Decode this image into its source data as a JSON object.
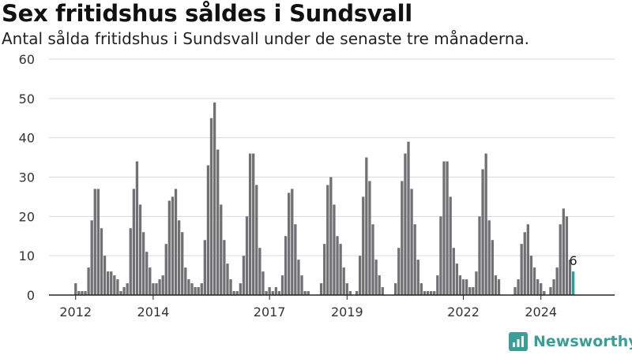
{
  "chart_data": {
    "type": "bar",
    "title": "Sex fritidshus såldes i Sundsvall",
    "subtitle": "Antal sålda fritidshus i Sundsvall under de senaste tre månaderna.",
    "xlabel": "",
    "ylabel": "",
    "ylim": [
      0,
      60
    ],
    "yticks": [
      0,
      10,
      20,
      30,
      40,
      50,
      60
    ],
    "xtick_labels": [
      "2012",
      "2014",
      "2017",
      "2019",
      "2022",
      "2024"
    ],
    "grid": true,
    "start_period": "2011-12",
    "values": [
      0,
      3,
      1,
      1,
      1,
      7,
      19,
      27,
      27,
      17,
      10,
      6,
      6,
      5,
      4,
      1,
      2,
      3,
      17,
      27,
      34,
      23,
      16,
      11,
      7,
      3,
      3,
      4,
      5,
      13,
      24,
      25,
      27,
      19,
      16,
      7,
      4,
      3,
      2,
      2,
      3,
      14,
      33,
      45,
      49,
      37,
      23,
      14,
      8,
      4,
      1,
      1,
      3,
      10,
      20,
      36,
      36,
      28,
      12,
      6,
      1,
      2,
      1,
      2,
      1,
      5,
      15,
      26,
      27,
      18,
      9,
      5,
      1,
      1,
      0,
      0,
      0,
      3,
      13,
      28,
      30,
      23,
      15,
      13,
      7,
      3,
      1,
      0,
      1,
      10,
      25,
      35,
      29,
      18,
      9,
      5,
      2,
      0,
      0,
      0,
      3,
      12,
      29,
      36,
      39,
      27,
      18,
      9,
      3,
      1,
      1,
      1,
      1,
      5,
      20,
      34,
      34,
      25,
      12,
      8,
      5,
      4,
      4,
      2,
      2,
      6,
      20,
      32,
      36,
      19,
      14,
      5,
      4,
      0,
      0,
      0,
      0,
      2,
      4,
      13,
      16,
      18,
      10,
      7,
      4,
      3,
      1,
      0,
      2,
      4,
      7,
      18,
      22,
      20,
      9,
      6
    ],
    "highlight_label": "6",
    "colors": {
      "bar": "#717174",
      "highlight": "#2a9d96",
      "grid": "#d9d9d9",
      "axis": "#222222"
    }
  },
  "branding": {
    "name": "Newsworthy",
    "icon": "bar-chart-logo-icon"
  }
}
